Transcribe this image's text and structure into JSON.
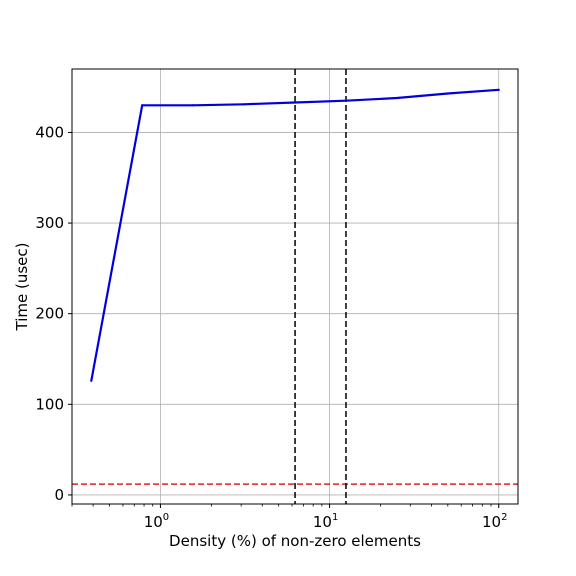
{
  "chart_data": {
    "type": "line",
    "xlabel": "Density (%) of non-zero elements",
    "ylabel": "Time (usec)",
    "x_scale": "log",
    "xlim": [
      0.3,
      130
    ],
    "ylim": [
      -10,
      470
    ],
    "grid": true,
    "x_ticks": [
      {
        "value": 1,
        "label_base": "10",
        "label_exp": "0"
      },
      {
        "value": 10,
        "label_base": "10",
        "label_exp": "1"
      },
      {
        "value": 100,
        "label_base": "10",
        "label_exp": "2"
      }
    ],
    "y_ticks": [
      {
        "value": 0,
        "label": "0"
      },
      {
        "value": 100,
        "label": "100"
      },
      {
        "value": 200,
        "label": "200"
      },
      {
        "value": 300,
        "label": "300"
      },
      {
        "value": 400,
        "label": "400"
      }
    ],
    "series": [
      {
        "color": "#0000dd",
        "style": "solid",
        "x": [
          0.39,
          0.78,
          1.56,
          3.12,
          6.25,
          12.5,
          25,
          50,
          100
        ],
        "y": [
          126,
          430,
          430,
          431,
          433,
          435,
          438,
          443,
          447
        ]
      }
    ],
    "reference_lines": [
      {
        "orientation": "horizontal",
        "value": 12,
        "color": "#dd2222",
        "style": "dashed"
      },
      {
        "orientation": "vertical",
        "value": 6.25,
        "color": "#000000",
        "style": "dashed"
      },
      {
        "orientation": "vertical",
        "value": 12.5,
        "color": "#000000",
        "style": "dashed"
      }
    ]
  }
}
